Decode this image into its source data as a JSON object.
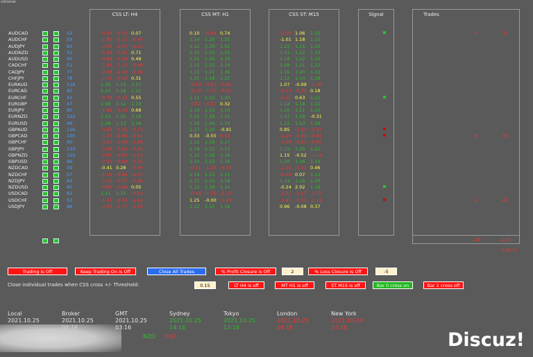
{
  "corner_label": "cdminer",
  "panels": {
    "css_lt": "CSS LT:   H4",
    "css_mt": "CSS MT:   H1",
    "css_st": "CSS ST:   M15",
    "signal": "Signal",
    "trades": "Trades"
  },
  "colors": {
    "red": "#ff3030",
    "yellow": "#ffff4a",
    "green": "#2fbf2f",
    "blue": "#4aa3ff"
  },
  "rows": [
    {
      "sym": "AUDCAD",
      "n": "52",
      "lt": [
        "-0.43",
        "-0.50",
        "0.07"
      ],
      "ltc": [
        "r",
        "r",
        "y"
      ],
      "mt": [
        "0.10",
        "-0.68",
        "0.74"
      ],
      "mtc": [
        "y",
        "r",
        "y"
      ],
      "st": [
        "-2.30",
        "1.06",
        "1.15"
      ],
      "stc": [
        "r",
        "y",
        "g"
      ],
      "sig": "green",
      "tr": [
        "-3",
        "-71"
      ]
    },
    {
      "sym": "AUDCHF",
      "n": "59",
      "lt": [
        "-1.80",
        "-1.13",
        "-0.40"
      ],
      "ltc": [
        "r",
        "r",
        "r"
      ],
      "mt": [
        "1.14",
        "1.25",
        "1.31"
      ],
      "mtc": [
        "g",
        "g",
        "g"
      ],
      "st": [
        "-1.01",
        "1.18",
        "1.13"
      ],
      "stc": [
        "y",
        "y",
        "g"
      ]
    },
    {
      "sym": "AUDJPY",
      "n": "83",
      "lt": [
        "-2.25",
        "-1.07",
        "-0.12"
      ],
      "ltc": [
        "r",
        "r",
        "r"
      ],
      "mt": [
        "1.12",
        "1.30",
        "1.51"
      ],
      "mtc": [
        "g",
        "g",
        "g"
      ],
      "st": [
        "1.22",
        "1.15",
        "1.12"
      ],
      "stc": [
        "g",
        "g",
        "g"
      ]
    },
    {
      "sym": "AUDNZD",
      "n": "52",
      "lt": [
        "-0.34",
        "-0.45",
        "0.71"
      ],
      "ltc": [
        "r",
        "r",
        "y"
      ],
      "mt": [
        "1.15",
        "1.20",
        "1.31"
      ],
      "mtc": [
        "g",
        "g",
        "g"
      ],
      "st": [
        "1.11",
        "1.12",
        "1.13"
      ],
      "stc": [
        "g",
        "g",
        "g"
      ]
    },
    {
      "sym": "AUDUSD",
      "n": "65",
      "lt": [
        "-0.85",
        "-0.34",
        "0.49"
      ],
      "ltc": [
        "r",
        "r",
        "y"
      ],
      "mt": [
        "1.21",
        "1.19",
        "1.33"
      ],
      "mtc": [
        "g",
        "g",
        "g"
      ],
      "st": [
        "1.18",
        "1.22",
        "1.15"
      ],
      "stc": [
        "g",
        "g",
        "g"
      ]
    },
    {
      "sym": "CADCHF",
      "n": "51",
      "lt": [
        "-1.81",
        "-1.13",
        "-0.48"
      ],
      "ltc": [
        "r",
        "r",
        "r"
      ],
      "mt": [
        "1.12",
        "1.15",
        "1.19"
      ],
      "mtc": [
        "g",
        "g",
        "g"
      ],
      "st": [
        "1.08",
        "1.11",
        "1.22"
      ],
      "stc": [
        "g",
        "g",
        "g"
      ]
    },
    {
      "sym": "CADJPY",
      "n": "77",
      "lt": [
        "-2.38",
        "-1.40",
        "-0.18"
      ],
      "ltc": [
        "r",
        "r",
        "r"
      ],
      "mt": [
        "1.15",
        "1.21",
        "1.36"
      ],
      "mtc": [
        "g",
        "g",
        "g"
      ],
      "st": [
        "1.16",
        "1.20",
        "1.13"
      ],
      "stc": [
        "g",
        "g",
        "g"
      ]
    },
    {
      "sym": "CHFJPY",
      "n": "78",
      "lt": [
        "-1.11",
        "-0.18",
        "0.31"
      ],
      "ltc": [
        "r",
        "r",
        "y"
      ],
      "mt": [
        "1.21",
        "1.18",
        "1.22"
      ],
      "mtc": [
        "g",
        "g",
        "g"
      ],
      "st": [
        "1.12",
        "1.14",
        "1.18"
      ],
      "stc": [
        "g",
        "g",
        "g"
      ]
    },
    {
      "sym": "EURAUD",
      "n": "116",
      "lt": [
        "1.36",
        "1.13",
        "1.17"
      ],
      "ltc": [
        "g",
        "g",
        "g"
      ],
      "mt": [
        "-0.19",
        "-0.13",
        "-0.86"
      ],
      "mtc": [
        "r",
        "r",
        "r"
      ],
      "st": [
        "1.07",
        "-0.99",
        "-1.40"
      ],
      "stc": [
        "y",
        "y",
        "r"
      ]
    },
    {
      "sym": "EURCAD",
      "n": "82",
      "lt": [
        "1.22",
        "1.18",
        "1.15"
      ],
      "ltc": [
        "g",
        "g",
        "g"
      ],
      "mt": [
        "-0.28",
        "-1.17",
        "-0.51"
      ],
      "mtc": [
        "r",
        "r",
        "r"
      ],
      "st": [
        "-1.23",
        "-0.33",
        "0.18"
      ],
      "stc": [
        "r",
        "r",
        "y"
      ]
    },
    {
      "sym": "EURCHF",
      "n": "41",
      "lt": [
        "-0.79",
        "-0.23",
        "0.55"
      ],
      "ltc": [
        "r",
        "r",
        "y"
      ],
      "mt": [
        "1.11",
        "1.12",
        "1.20"
      ],
      "mtc": [
        "g",
        "g",
        "g"
      ],
      "st": [
        "-0.21",
        "0.63",
        "1.21"
      ],
      "stc": [
        "r",
        "y",
        "g"
      ],
      "sig": "green"
    },
    {
      "sym": "EURGBP",
      "n": "47",
      "lt": [
        "1.08",
        "1.12",
        "1.19"
      ],
      "ltc": [
        "g",
        "g",
        "g"
      ],
      "mt": [
        "-0.52",
        "-0.37",
        "0.32"
      ],
      "mtc": [
        "r",
        "r",
        "y"
      ],
      "st": [
        "1.12",
        "1.18",
        "1.12"
      ],
      "stc": [
        "g",
        "g",
        "g"
      ]
    },
    {
      "sym": "EURJPY",
      "n": "80",
      "lt": [
        "-1.88",
        "-0.34",
        "0.68"
      ],
      "ltc": [
        "r",
        "r",
        "y"
      ],
      "mt": [
        "1.16",
        "1.22",
        "1.14"
      ],
      "mtc": [
        "g",
        "g",
        "g"
      ],
      "st": [
        "1.20",
        "1.11",
        "1.15"
      ],
      "stc": [
        "g",
        "g",
        "g"
      ]
    },
    {
      "sym": "EURNZD",
      "n": "122",
      "lt": [
        "1.14",
        "1.20",
        "1.18"
      ],
      "ltc": [
        "g",
        "g",
        "g"
      ],
      "mt": [
        "1.21",
        "1.18",
        "1.15"
      ],
      "mtc": [
        "g",
        "g",
        "g"
      ],
      "st": [
        "1.11",
        "1.18",
        "-0.31"
      ],
      "stc": [
        "g",
        "g",
        "y"
      ]
    },
    {
      "sym": "EURUSD",
      "n": "48",
      "lt": [
        "1.18",
        "1.13",
        "1.16"
      ],
      "ltc": [
        "g",
        "g",
        "g"
      ],
      "mt": [
        "1.16",
        "1.24",
        "1.14"
      ],
      "mtc": [
        "g",
        "g",
        "g"
      ],
      "st": [
        "1.21",
        "1.13",
        "1.18"
      ],
      "stc": [
        "g",
        "g",
        "g"
      ]
    },
    {
      "sym": "GBPAUD",
      "n": "116",
      "lt": [
        "-0.85",
        "-0.35",
        "-0.74"
      ],
      "ltc": [
        "r",
        "r",
        "r"
      ],
      "mt": [
        "1.17",
        "1.20",
        "-0.91"
      ],
      "mtc": [
        "g",
        "g",
        "y"
      ],
      "st": [
        "0.85",
        "-1.84",
        "-0.33"
      ],
      "stc": [
        "y",
        "r",
        "r"
      ],
      "sig": "red"
    },
    {
      "sym": "GBPCAD",
      "n": "100",
      "lt": [
        "-1.25",
        "-0.89",
        "-0.61"
      ],
      "ltc": [
        "r",
        "r",
        "r"
      ],
      "mt": [
        "0.33",
        "-0.55",
        "0.58"
      ],
      "mtc": [
        "y",
        "y",
        "r"
      ],
      "st": [
        "-1.20",
        "-0.93",
        "-0.82"
      ],
      "stc": [
        "r",
        "r",
        "r"
      ],
      "sig": "red",
      "tr": [
        "-6",
        "-63"
      ]
    },
    {
      "sym": "GBPCHF",
      "n": "85",
      "lt": [
        "-3.13",
        "-1.06",
        "-1.39"
      ],
      "ltc": [
        "r",
        "r",
        "r"
      ],
      "mt": [
        "1.12",
        "1.19",
        "1.17"
      ],
      "mtc": [
        "g",
        "g",
        "g"
      ],
      "st": [
        "-0.26",
        "-0.52",
        "-0.95"
      ],
      "stc": [
        "r",
        "r",
        "r"
      ]
    },
    {
      "sym": "GBPJPY",
      "n": "133",
      "lt": [
        "-3.38",
        "-1.62",
        "-0.82"
      ],
      "ltc": [
        "r",
        "r",
        "r"
      ],
      "mt": [
        "1.19",
        "1.22",
        "1.13"
      ],
      "mtc": [
        "g",
        "g",
        "g"
      ],
      "st": [
        "1.15",
        "1.20",
        "1.21"
      ],
      "stc": [
        "g",
        "g",
        "g"
      ]
    },
    {
      "sym": "GBPNZD",
      "n": "125",
      "lt": [
        "-0.81",
        "-0.65",
        "-0.23"
      ],
      "ltc": [
        "r",
        "r",
        "r"
      ],
      "mt": [
        "1.15",
        "1.18",
        "1.16"
      ],
      "mtc": [
        "g",
        "g",
        "g"
      ],
      "st": [
        "1.15",
        "-0.52",
        "-1.14"
      ],
      "stc": [
        "y",
        "y",
        "r"
      ]
    },
    {
      "sym": "GBPUSD",
      "n": "86",
      "lt": [
        "-2.03",
        "-0.64",
        "-0.25"
      ],
      "ltc": [
        "r",
        "r",
        "r"
      ],
      "mt": [
        "1.14",
        "1.12",
        "1.18"
      ],
      "mtc": [
        "g",
        "g",
        "g"
      ],
      "st": [
        "1.20",
        "1.16",
        "1.14"
      ],
      "stc": [
        "g",
        "g",
        "g"
      ]
    },
    {
      "sym": "NZDCAD",
      "n": "59",
      "lt": [
        "-0.41",
        "0.28",
        "-0.40"
      ],
      "ltc": [
        "y",
        "y",
        "r"
      ],
      "mt": [
        "-0.21",
        "-1.20",
        "-0.30"
      ],
      "mtc": [
        "r",
        "r",
        "r"
      ],
      "st": [
        "-2.30",
        "-0.33",
        "0.46"
      ],
      "stc": [
        "r",
        "r",
        "y"
      ]
    },
    {
      "sym": "NZDCHF",
      "n": "57",
      "lt": [
        "-1.58",
        "-0.68",
        "-0.72"
      ],
      "ltc": [
        "r",
        "r",
        "r"
      ],
      "mt": [
        "1.14",
        "1.22",
        "1.21"
      ],
      "mtc": [
        "g",
        "g",
        "g"
      ],
      "st": [
        "-1.44",
        "0.07",
        "1.12"
      ],
      "stc": [
        "r",
        "y",
        "g"
      ]
    },
    {
      "sym": "NZDJPY",
      "n": "83",
      "lt": [
        "-2.15",
        "-0.77",
        "-0.46"
      ],
      "ltc": [
        "r",
        "r",
        "r"
      ],
      "mt": [
        "1.11",
        "1.15",
        "1.18"
      ],
      "mtc": [
        "g",
        "g",
        "g"
      ],
      "st": [
        "1.14",
        "1.16",
        "1.20"
      ],
      "stc": [
        "g",
        "g",
        "g"
      ]
    },
    {
      "sym": "NZDUSD",
      "n": "65",
      "lt": [
        "-0.90",
        "-0.08",
        "0.05"
      ],
      "ltc": [
        "r",
        "r",
        "y"
      ],
      "mt": [
        "1.12",
        "1.18",
        "1.14"
      ],
      "mtc": [
        "g",
        "g",
        "g"
      ],
      "st": [
        "-0.24",
        "2.02",
        "1.18"
      ],
      "stc": [
        "y",
        "y",
        "g"
      ],
      "sig": "green"
    },
    {
      "sym": "USDCAD",
      "n": "81",
      "lt": [
        "1.11",
        "1.15",
        "-0.54"
      ],
      "ltc": [
        "g",
        "g",
        "r"
      ],
      "mt": [
        "-0.44",
        "-1.76",
        "-2.27"
      ],
      "mtc": [
        "r",
        "r",
        "r"
      ],
      "st": [
        "-2.31",
        "-2.17",
        "-2.75"
      ],
      "stc": [
        "r",
        "r",
        "r"
      ]
    },
    {
      "sym": "USDCHF",
      "n": "52",
      "lt": [
        "-1.31",
        "-1.03",
        "-1.12"
      ],
      "ltc": [
        "r",
        "r",
        "r"
      ],
      "mt": [
        "1.25",
        "-0.00",
        "-1.28"
      ],
      "mtc": [
        "y",
        "y",
        "r"
      ],
      "st": [
        "-1.41",
        "-1.01",
        "-2.19"
      ],
      "stc": [
        "r",
        "r",
        "r"
      ],
      "sig": "red",
      "tr": [
        "-2",
        "-65"
      ]
    },
    {
      "sym": "USDJPY",
      "n": "88",
      "lt": [
        "-2.33",
        "-1.17",
        "-0.76"
      ],
      "ltc": [
        "r",
        "r",
        "r"
      ],
      "mt": [
        "1.12",
        "1.15",
        "1.18"
      ],
      "mtc": [
        "g",
        "g",
        "g"
      ],
      "st": [
        "0.96",
        "-0.08",
        "0.37"
      ],
      "stc": [
        "y",
        "y",
        "y"
      ]
    }
  ],
  "trades_totals": {
    "a": "-10",
    "b": "-210",
    "pct": "-0.30 %"
  },
  "controls": {
    "trading_off": "Trading is Off",
    "keep_trading": "Keep Trading On is Off",
    "close_all": "Close All Trades",
    "profit_closure": "% Profit Closure is Off",
    "profit_value": "2",
    "loss_closure": "% Loss Closure is Off",
    "loss_value": "-5",
    "threshold_label": "Close individual trades when CSS cross +/- Threshold:",
    "threshold_value": "0.15",
    "lt_h4": "LT  H4 is off",
    "mt_h1": "MT  H1 is off",
    "st_m15": "ST  M15 is off",
    "bar0": "Bar 0 cross on",
    "bar1": "Bar 1 cross off"
  },
  "clocks": [
    {
      "name": "Local",
      "date": "2021.10.25",
      "time": "",
      "dc": "#eaeaea"
    },
    {
      "name": "Broker",
      "date": "2021.10.25",
      "time": "06:16",
      "dc": "#eaeaea"
    },
    {
      "name": "GMT",
      "date": "2021.10.25",
      "time": "03:16",
      "dc": "#eaeaea"
    },
    {
      "name": "Sydney",
      "date": "2021.10.25",
      "time": "14:16",
      "dc": "#2fbf2f"
    },
    {
      "name": "Tokyo",
      "date": "2021.10.25",
      "time": "12:16",
      "dc": "#2fbf2f"
    },
    {
      "name": "London",
      "date": "2021.10.25",
      "time": "04:16",
      "dc": "#ff3030"
    },
    {
      "name": "New York",
      "date": "2021.10.24",
      "time": "23:16",
      "dc": "#ff3030"
    }
  ],
  "currency_row": [
    "NZD",
    "USD"
  ],
  "watermark": "Discuz!"
}
